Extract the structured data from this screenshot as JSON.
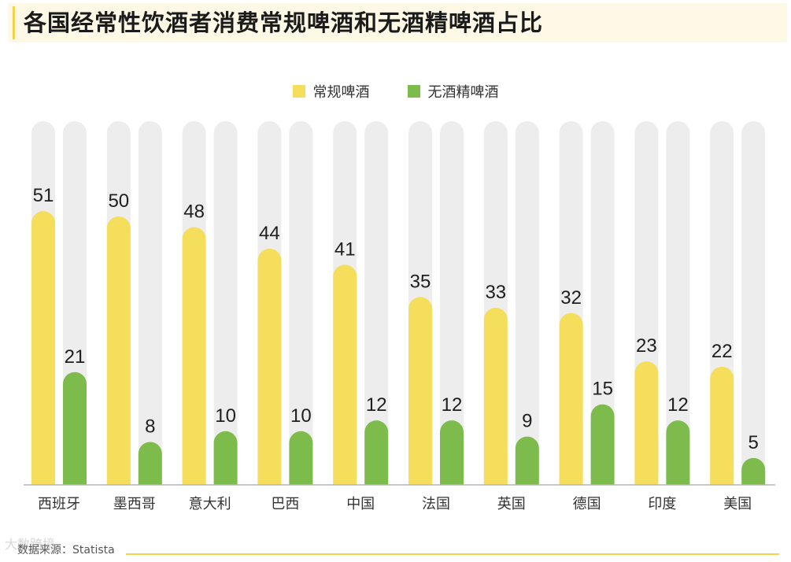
{
  "title": "各国经常性饮酒者消费常规啤酒和无酒精啤酒占比",
  "source": "数据来源：Statista",
  "watermark": "大数跨境",
  "colors": {
    "regular": "#f5de5c",
    "non_alcoholic": "#7dbb4d",
    "track": "#ededed",
    "title_accent": "#f2d34c"
  },
  "chart_data": {
    "type": "bar",
    "title": "各国经常性饮酒者消费常规啤酒和无酒精啤酒占比",
    "categories": [
      "西班牙",
      "墨西哥",
      "意大利",
      "巴西",
      "中国",
      "法国",
      "英国",
      "德国",
      "印度",
      "美国"
    ],
    "series": [
      {
        "name": "常规啤酒",
        "values": [
          51,
          50,
          48,
          44,
          41,
          35,
          33,
          32,
          23,
          22
        ]
      },
      {
        "name": "无酒精啤酒",
        "values": [
          21,
          8,
          10,
          10,
          12,
          12,
          9,
          15,
          12,
          5
        ]
      }
    ],
    "ylim": [
      0,
      100
    ],
    "xlabel": "",
    "ylabel": "",
    "legend": "top-center",
    "grid": false
  }
}
